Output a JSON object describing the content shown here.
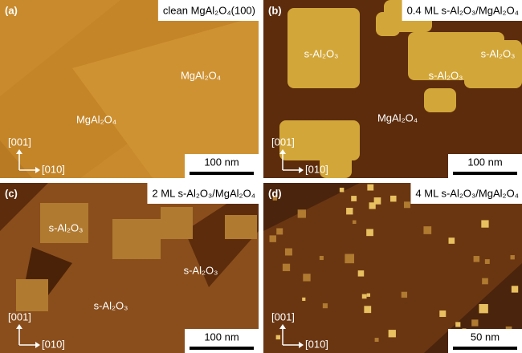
{
  "panels": [
    {
      "label": "(a)",
      "title": "clean MgAl₂O₄(100)",
      "regions": [
        "MgAl₂O₄",
        "MgAl₂O₄"
      ],
      "axes": [
        "[001]",
        "[010]"
      ],
      "scale": "100 nm"
    },
    {
      "label": "(b)",
      "title": "0.4 ML s-Al₂O₃/MgAl₂O₄",
      "regions": [
        "s-Al₂O₃",
        "s-Al₂O₃",
        "s-Al₂O₃",
        "MgAl₂O₄"
      ],
      "axes": [
        "[001]",
        "[010]"
      ],
      "scale": "100 nm"
    },
    {
      "label": "(c)",
      "title": "2 ML s-Al₂O₃/MgAl₂O₄",
      "regions": [
        "s-Al₂O₃",
        "s-Al₂O₃",
        "s-Al₂O₃"
      ],
      "axes": [
        "[001]",
        "[010]"
      ],
      "scale": "100 nm"
    },
    {
      "label": "(d)",
      "title": "4 ML s-Al₂O₃/MgAl₂O₄",
      "regions": [],
      "axes": [
        "[001]",
        "[010]"
      ],
      "scale": "50 nm"
    }
  ]
}
